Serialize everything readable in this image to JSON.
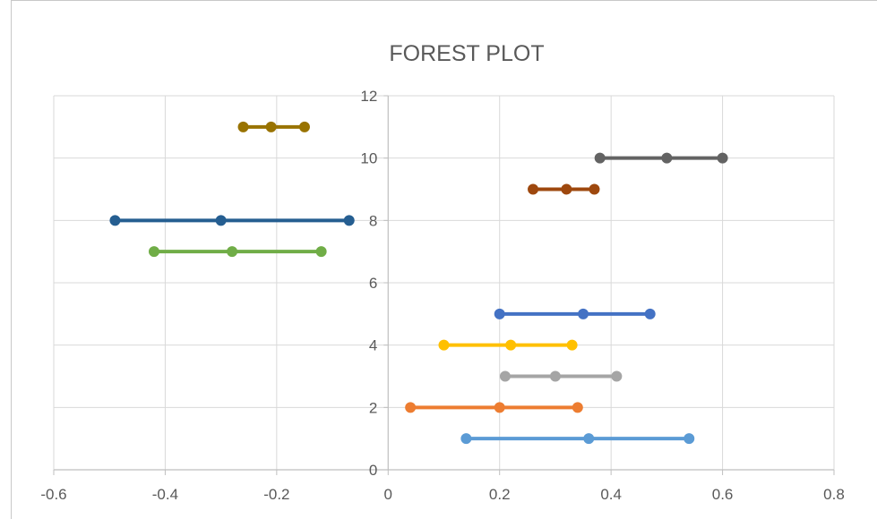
{
  "chart_data": {
    "type": "line",
    "title": "FOREST PLOT",
    "xlabel": "",
    "ylabel": "",
    "xlim": [
      -0.6,
      0.8
    ],
    "ylim": [
      0,
      12
    ],
    "x_ticks": [
      "-0.6",
      "-0.4",
      "-0.2",
      "0",
      "0.2",
      "0.4",
      "0.6",
      "0.8"
    ],
    "y_ticks": [
      "0",
      "2",
      "4",
      "6",
      "8",
      "10",
      "12"
    ],
    "grid": true,
    "legend": "none",
    "series": [
      {
        "color": "#5B9BD5",
        "points": [
          {
            "x": 0.14,
            "y": 1
          },
          {
            "x": 0.36,
            "y": 1
          },
          {
            "x": 0.54,
            "y": 1
          }
        ]
      },
      {
        "color": "#ED7D31",
        "points": [
          {
            "x": 0.04,
            "y": 2
          },
          {
            "x": 0.2,
            "y": 2
          },
          {
            "x": 0.34,
            "y": 2
          }
        ]
      },
      {
        "color": "#A5A5A5",
        "points": [
          {
            "x": 0.21,
            "y": 3
          },
          {
            "x": 0.3,
            "y": 3
          },
          {
            "x": 0.41,
            "y": 3
          }
        ]
      },
      {
        "color": "#FFC000",
        "points": [
          {
            "x": 0.1,
            "y": 4
          },
          {
            "x": 0.22,
            "y": 4
          },
          {
            "x": 0.33,
            "y": 4
          }
        ]
      },
      {
        "color": "#4472C4",
        "points": [
          {
            "x": 0.2,
            "y": 5
          },
          {
            "x": 0.35,
            "y": 5
          },
          {
            "x": 0.47,
            "y": 5
          }
        ]
      },
      {
        "color": "#70AD47",
        "points": [
          {
            "x": -0.42,
            "y": 7
          },
          {
            "x": -0.28,
            "y": 7
          },
          {
            "x": -0.12,
            "y": 7
          }
        ]
      },
      {
        "color": "#255E91",
        "points": [
          {
            "x": -0.49,
            "y": 8
          },
          {
            "x": -0.3,
            "y": 8
          },
          {
            "x": -0.07,
            "y": 8
          }
        ]
      },
      {
        "color": "#9E480E",
        "points": [
          {
            "x": 0.26,
            "y": 9
          },
          {
            "x": 0.32,
            "y": 9
          },
          {
            "x": 0.37,
            "y": 9
          }
        ]
      },
      {
        "color": "#636363",
        "points": [
          {
            "x": 0.38,
            "y": 10
          },
          {
            "x": 0.5,
            "y": 10
          },
          {
            "x": 0.6,
            "y": 10
          }
        ]
      },
      {
        "color": "#997300",
        "points": [
          {
            "x": -0.26,
            "y": 11
          },
          {
            "x": -0.21,
            "y": 11
          },
          {
            "x": -0.15,
            "y": 11
          }
        ]
      }
    ],
    "colors": {
      "gridline": "#D9D9D9",
      "axis": "#BFBFBF",
      "text": "#595959"
    }
  }
}
